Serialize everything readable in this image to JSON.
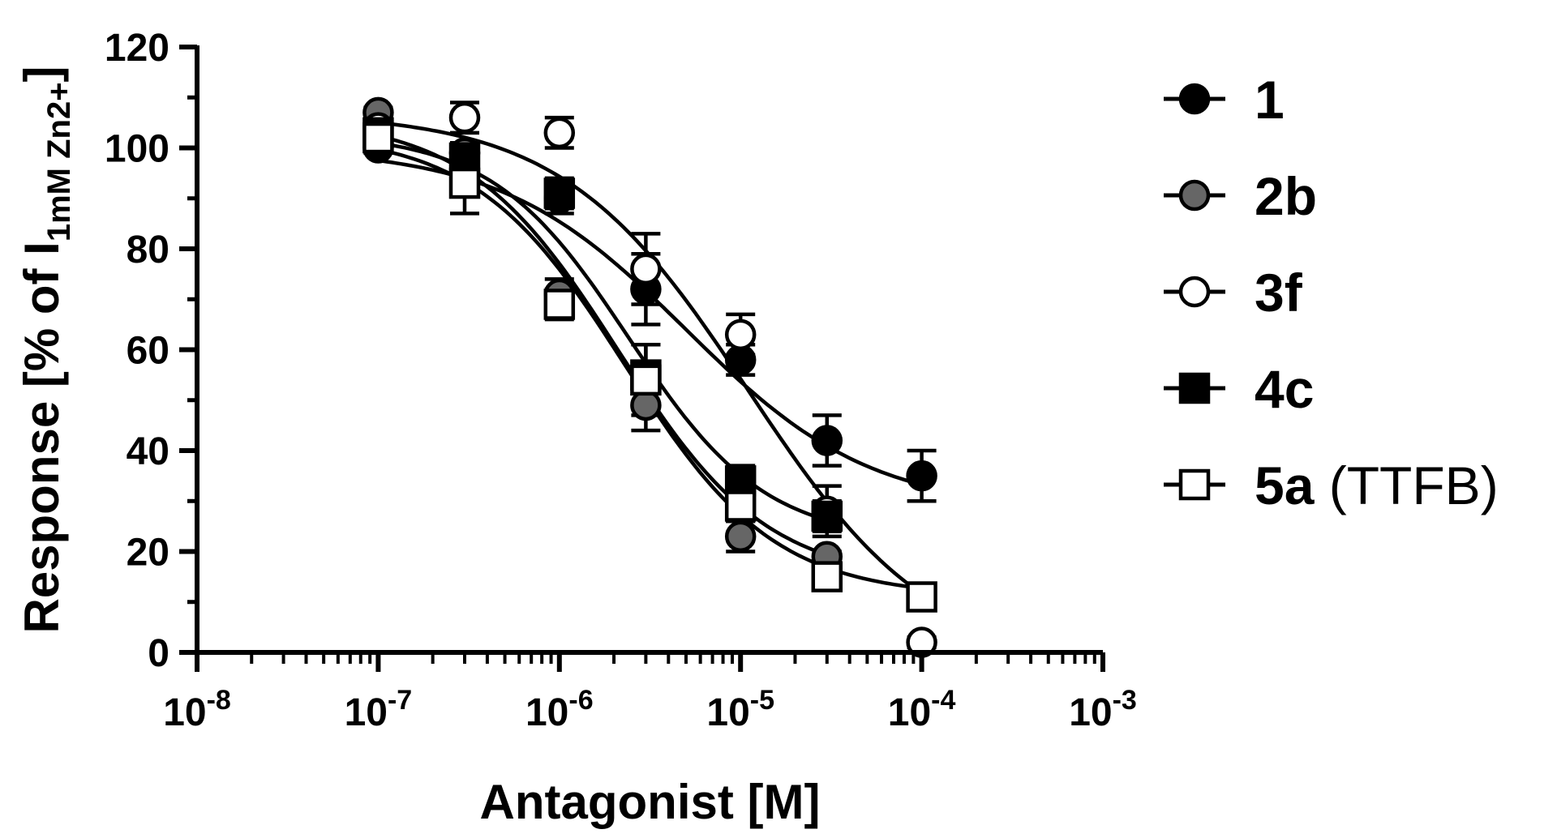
{
  "chart_data": {
    "type": "scatter",
    "title": "",
    "xlabel": "Antagonist [M]",
    "ylabel": {
      "main": "Response [% of I",
      "subscript": "1mM Zn2+",
      "close": "]"
    },
    "xscale": "log",
    "xlim": [
      1e-08,
      0.001
    ],
    "ylim": [
      0,
      120
    ],
    "xticks": [
      {
        "value": 1e-08,
        "base": "10",
        "exp": "-8"
      },
      {
        "value": 1e-07,
        "base": "10",
        "exp": "-7"
      },
      {
        "value": 1e-06,
        "base": "10",
        "exp": "-6"
      },
      {
        "value": 1e-05,
        "base": "10",
        "exp": "-5"
      },
      {
        "value": 0.0001,
        "base": "10",
        "exp": "-4"
      },
      {
        "value": 0.001,
        "base": "10",
        "exp": "-3"
      }
    ],
    "yticks": [
      {
        "value": 0,
        "label": "0"
      },
      {
        "value": 20,
        "label": "20"
      },
      {
        "value": 40,
        "label": "40"
      },
      {
        "value": 60,
        "label": "60"
      },
      {
        "value": 80,
        "label": "80"
      },
      {
        "value": 100,
        "label": "100"
      },
      {
        "value": 120,
        "label": "120"
      }
    ],
    "grid": false,
    "legend_position": "right",
    "x": [
      1e-07,
      3e-07,
      1e-06,
      3e-06,
      1e-05,
      3e-05,
      0.0001
    ],
    "series": [
      {
        "id": "s1",
        "name": "1",
        "marker": "circle",
        "fill": "#000000",
        "values": [
          100,
          99,
          90,
          72,
          58,
          42,
          35
        ],
        "errors": [
          1,
          2,
          3,
          7,
          3,
          5,
          5
        ],
        "fit": {
          "top": 100,
          "bottom": 28,
          "ec50": 5e-06,
          "hill": 0.85
        }
      },
      {
        "id": "s2b",
        "name": "2b",
        "marker": "circle",
        "fill": "#666666",
        "values": [
          107,
          99,
          71,
          49,
          23,
          19,
          null
        ],
        "errors": [
          1,
          1,
          3,
          5,
          3,
          1,
          null
        ],
        "fit": {
          "top": 106,
          "bottom": 14,
          "ec50": 2.1e-06,
          "hill": 1.05
        }
      },
      {
        "id": "s3f",
        "name": "3f",
        "marker": "circle",
        "fill": "#ffffff",
        "values": [
          104,
          106,
          103,
          76,
          63,
          28,
          2
        ],
        "errors": [
          1,
          3,
          3,
          7,
          4,
          5,
          1
        ],
        "fit": {
          "top": 107,
          "bottom": -3,
          "ec50": 1.1e-05,
          "hill": 0.85
        }
      },
      {
        "id": "s4c",
        "name": "4c",
        "marker": "square",
        "fill": "#000000",
        "values": [
          103,
          98,
          91,
          55,
          34,
          27,
          null
        ],
        "errors": [
          1,
          2,
          3,
          6,
          3,
          3,
          null
        ],
        "fit": {
          "top": 103,
          "bottom": 22,
          "ec50": 2.4e-06,
          "hill": 1.15
        }
      },
      {
        "id": "s5a",
        "name": "5a",
        "label_extra": " (TTFB)",
        "marker": "square",
        "fill": "#ffffff",
        "values": [
          102,
          93,
          69,
          54,
          29,
          15,
          11
        ],
        "errors": [
          1,
          6,
          3,
          7,
          3,
          2,
          1
        ],
        "fit": {
          "top": 103,
          "bottom": 11,
          "ec50": 2.3e-06,
          "hill": 1.05
        }
      }
    ]
  }
}
